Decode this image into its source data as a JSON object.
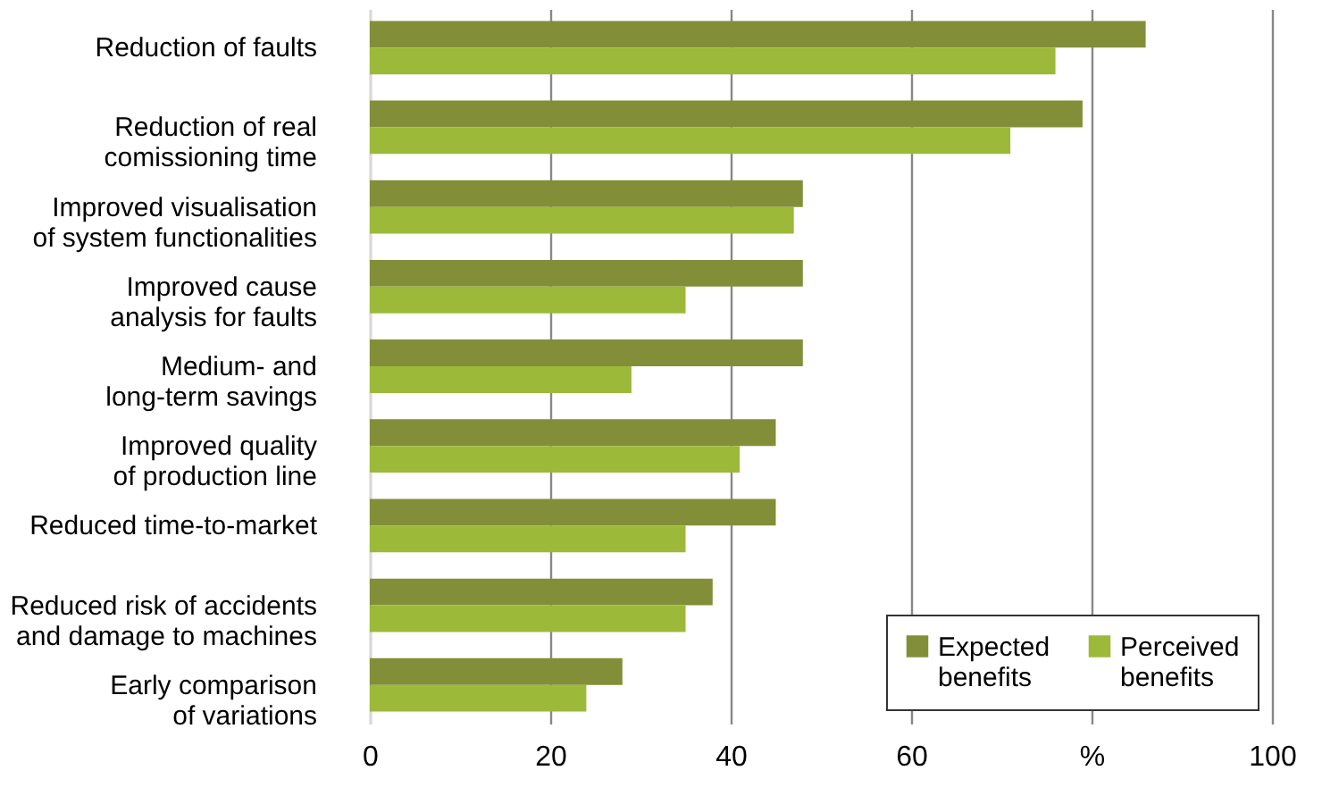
{
  "chart_data": {
    "type": "bar",
    "orientation": "horizontal",
    "categories": [
      "Reduction of faults",
      "Reduction of real\ncomissioning time",
      "Improved visualisation\nof system functionalities",
      "Improved cause\nanalysis for faults",
      "Medium- and\nlong-term savings",
      "Improved quality\nof production line",
      "Reduced time-to-market",
      "Reduced risk of accidents\nand damage to machines",
      "Early comparison\nof variations"
    ],
    "series": [
      {
        "name": "Expected benefits",
        "color": "#828f38",
        "values": [
          86,
          79,
          48,
          48,
          48,
          45,
          45,
          38,
          28
        ]
      },
      {
        "name": "Perceived benefits",
        "color": "#9cb93a",
        "values": [
          76,
          71,
          47,
          35,
          29,
          41,
          35,
          35,
          24
        ]
      }
    ],
    "xlim": [
      0,
      100
    ],
    "xticks": [
      0,
      20,
      40,
      60,
      {
        "value": 80,
        "label": "%"
      },
      100
    ],
    "grid": "x",
    "legend": "bottom right"
  }
}
